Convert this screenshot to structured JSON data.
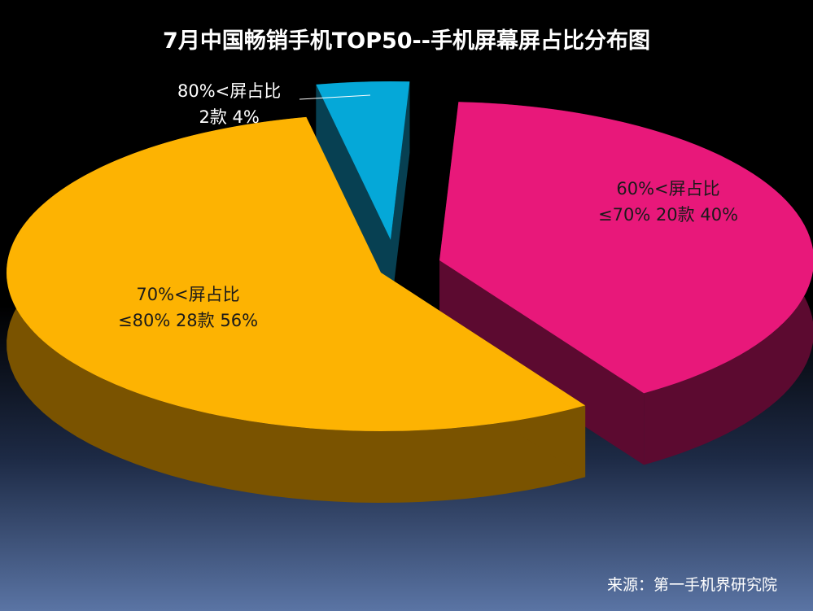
{
  "title": "7月中国畅销手机TOP50--手机屏幕屏占比分布图",
  "source": "来源：第一手机界研究院",
  "chart_data": {
    "type": "pie",
    "title": "7月中国畅销手机TOP50--手机屏幕屏占比分布图",
    "slices": [
      {
        "line1": "60%<屏占比",
        "line2": "≤70% 20款   40%",
        "count": 20,
        "percent": 40,
        "color": "#e8187a",
        "side_color": "#5c0a30"
      },
      {
        "line1": "70%<屏占比",
        "line2": "≤80% 28款   56%",
        "count": 28,
        "percent": 56,
        "color": "#fdb302",
        "side_color": "#7a5300"
      },
      {
        "line1": "80%<屏占比",
        "line2": "2款   4%",
        "count": 2,
        "percent": 4,
        "color": "#05a8d8",
        "side_color": "#074052"
      }
    ],
    "label_colors": [
      "#1a1a1a",
      "#1a1a1a",
      "#ffffff"
    ]
  }
}
